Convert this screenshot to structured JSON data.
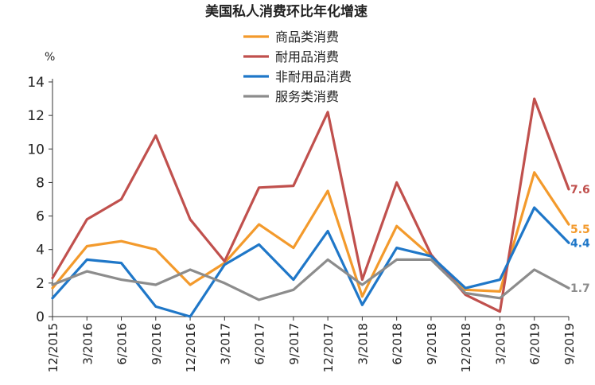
{
  "chart_data": {
    "type": "line",
    "title": "美国私人消费环比年化增速",
    "ylabel": "%",
    "xlabel": "",
    "ylim": [
      0,
      14
    ],
    "yticks": [
      0,
      2,
      4,
      6,
      8,
      10,
      12,
      14
    ],
    "grid": false,
    "legend_position": "top-center",
    "categories": [
      "12/2015",
      "3/2016",
      "6/2016",
      "9/2016",
      "12/2016",
      "3/2017",
      "6/2017",
      "9/2017",
      "12/2017",
      "3/2018",
      "6/2018",
      "9/2018",
      "12/2018",
      "3/2019",
      "6/2019",
      "9/2019"
    ],
    "series": [
      {
        "name": "商品类消费",
        "color": "#F39A2C",
        "values": [
          1.7,
          4.2,
          4.5,
          4.0,
          1.9,
          3.2,
          5.5,
          4.1,
          7.5,
          1.2,
          5.4,
          3.6,
          1.6,
          1.5,
          8.6,
          5.5
        ],
        "end_label": "5.5"
      },
      {
        "name": "耐用品消费",
        "color": "#C0504D",
        "values": [
          2.3,
          5.8,
          7.0,
          10.8,
          5.8,
          3.3,
          7.7,
          7.8,
          12.2,
          2.2,
          8.0,
          3.7,
          1.3,
          0.3,
          13.0,
          7.6
        ],
        "end_label": "7.6"
      },
      {
        "name": "非耐用品消费",
        "color": "#1F77C8",
        "values": [
          1.1,
          3.4,
          3.2,
          0.6,
          0.0,
          3.1,
          4.3,
          2.2,
          5.1,
          0.7,
          4.1,
          3.6,
          1.7,
          2.2,
          6.5,
          4.4
        ],
        "end_label": "4.4"
      },
      {
        "name": "服务类消费",
        "color": "#8C8C8C",
        "values": [
          1.9,
          2.7,
          2.2,
          1.9,
          2.8,
          2.0,
          1.0,
          1.6,
          3.4,
          1.9,
          3.4,
          3.4,
          1.4,
          1.1,
          2.8,
          1.7
        ],
        "end_label": "1.7"
      }
    ]
  }
}
